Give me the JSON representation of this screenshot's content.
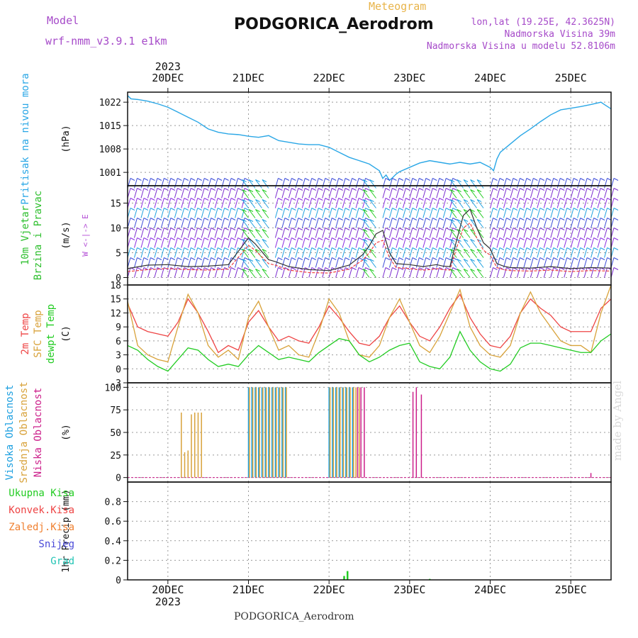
{
  "header": {
    "model_label": "Model",
    "model_name": "wrf-nmm_v3.9.1 e1km",
    "product": "Meteogram",
    "station": "PODGORICA_Aerodrom",
    "lonlat": "lon,lat (19.25E, 42.3625N)",
    "elevation": "Nadmorska Visina 39m",
    "model_elevation": "Nadmorska Visina u modelu 52.8106m"
  },
  "footer": {
    "station": "PODGORICA_Aerodrom",
    "credit": "made by Angel"
  },
  "colors": {
    "pressure": "#2aa7e6",
    "wind_axis": "#2dbf2d",
    "wind_dir": "#b44fd6",
    "temp2m": "#ee4444",
    "sfc": "#d8a23a",
    "dewpt": "#22cc22",
    "high_cloud": "#1ea0e0",
    "mid_cloud": "#d8a23a",
    "low_cloud": "#cc1f8a",
    "precip_total": "#22cc22",
    "precip_conv": "#ee4444",
    "precip_frz": "#f08030",
    "snow": "#4a4ad8",
    "hail": "#22c4b4"
  },
  "time_axis": {
    "year": "2023",
    "days": [
      "20DEC",
      "21DEC",
      "22DEC",
      "23DEC",
      "24DEC",
      "25DEC"
    ]
  },
  "chart_data": [
    {
      "type": "line",
      "title": "Pritisak na nivou mora",
      "ylabel": "(hPa)",
      "x_unit": "hours from 19DEC 12UTC",
      "ylim": [
        997,
        1025
      ],
      "yticks": [
        1001,
        1008,
        1015,
        1022
      ],
      "series": [
        {
          "x": [
            0,
            1,
            3,
            6,
            9,
            12,
            15,
            18,
            21,
            24,
            27,
            30,
            33,
            36,
            39,
            42,
            45,
            48,
            51,
            54,
            57,
            60,
            63,
            66,
            69,
            72,
            75,
            76,
            77,
            78,
            79,
            80,
            81,
            84,
            87,
            90,
            93,
            96,
            99,
            102,
            105,
            108,
            109,
            110,
            111,
            114,
            117,
            120,
            123,
            126,
            129,
            132,
            135,
            138,
            141,
            142,
            144
          ],
          "values": [
            1024,
            1023,
            1022.8,
            1022.3,
            1021.5,
            1020.5,
            1019,
            1017.5,
            1016,
            1014,
            1013,
            1012.5,
            1012.3,
            1011.8,
            1011.5,
            1012,
            1010.5,
            1010,
            1009.5,
            1009.3,
            1009.3,
            1008.5,
            1007,
            1005.5,
            1004.5,
            1003.5,
            1001.5,
            999.2,
            1000.2,
            998.6,
            999.5,
            1000.5,
            1001.2,
            1002.5,
            1003.8,
            1004.5,
            1004,
            1003.5,
            1004,
            1003.5,
            1004,
            1002.5,
            1001.5,
            1005,
            1007,
            1009.5,
            1012,
            1014,
            1016.2,
            1018.2,
            1019.7,
            1020.2,
            1020.7,
            1021.3,
            1022,
            1021.3,
            1020
          ]
        }
      ]
    },
    {
      "type": "line",
      "title": "10m Vjetar Brzina i Pravac",
      "ylabel": "(m/s)",
      "direction_key": "W <-|-> E",
      "ylim": [
        -1.5,
        18.5
      ],
      "yticks": [
        0,
        5,
        10,
        15
      ],
      "series": [
        {
          "x": [
            0,
            6,
            12,
            18,
            24,
            30,
            36,
            38,
            42,
            44,
            48,
            54,
            60,
            66,
            70,
            72,
            74,
            76,
            78,
            80,
            84,
            88,
            90,
            92,
            94,
            96,
            98,
            100,
            102,
            104,
            106,
            108,
            110,
            112,
            114,
            120,
            126,
            132,
            138,
            144
          ],
          "values": [
            1.2,
            1.6,
            1.8,
            1.6,
            1.5,
            1.7,
            6.5,
            5.5,
            2.8,
            2.5,
            1.5,
            1.0,
            0.9,
            1.7,
            3.5,
            5.0,
            7.0,
            7.5,
            4.0,
            2.0,
            1.8,
            1.5,
            1.6,
            1.8,
            1.6,
            1.5,
            6.0,
            10.0,
            11.0,
            8.0,
            5.5,
            4.5,
            2.0,
            1.6,
            1.4,
            1.3,
            1.5,
            1.2,
            1.4,
            1.3
          ]
        },
        {
          "x": [
            0,
            6,
            12,
            18,
            24,
            30,
            36,
            38,
            42,
            44,
            48,
            54,
            60,
            66,
            70,
            72,
            74,
            76,
            78,
            80,
            84,
            88,
            90,
            92,
            94,
            96,
            98,
            100,
            102,
            104,
            106,
            108,
            110,
            112,
            114,
            120,
            126,
            132,
            138,
            144
          ],
          "values": [
            1.8,
            2.5,
            2.6,
            2.2,
            2.3,
            2.6,
            8.0,
            6.8,
            3.6,
            3.2,
            2.2,
            1.6,
            1.4,
            2.5,
            4.6,
            6.4,
            8.8,
            9.5,
            5.0,
            2.8,
            2.6,
            2.2,
            2.4,
            2.6,
            2.3,
            2.2,
            7.5,
            12.5,
            13.8,
            10.0,
            7.0,
            5.8,
            2.8,
            2.3,
            2.0,
            1.9,
            2.2,
            1.8,
            2.0,
            1.9
          ]
        }
      ]
    },
    {
      "type": "line",
      "ylabel": "(C)",
      "ylim": [
        -3,
        18
      ],
      "yticks": [
        -3,
        0,
        3,
        6,
        9,
        12,
        15,
        18
      ],
      "series": [
        {
          "name": "2m Temp",
          "x": [
            0,
            3,
            6,
            9,
            12,
            15,
            18,
            21,
            24,
            27,
            30,
            33,
            36,
            39,
            42,
            45,
            48,
            51,
            54,
            57,
            60,
            63,
            66,
            69,
            72,
            75,
            78,
            81,
            84,
            87,
            90,
            93,
            96,
            99,
            102,
            105,
            108,
            111,
            114,
            117,
            120,
            123,
            126,
            129,
            132,
            135,
            138,
            141,
            144
          ],
          "values": [
            14,
            9,
            8,
            7.5,
            7,
            10,
            15,
            12,
            8,
            3.5,
            5,
            4,
            10,
            12.5,
            9,
            6,
            7,
            6,
            5.5,
            9,
            13.5,
            11,
            8,
            5.5,
            5,
            7,
            11,
            13.5,
            10,
            7,
            6,
            9,
            13,
            16,
            11,
            7.5,
            5,
            4.5,
            7,
            12,
            15,
            13,
            11.5,
            9,
            8,
            8,
            8,
            13,
            15
          ]
        },
        {
          "name": "SFC Temp",
          "x": [
            0,
            3,
            6,
            9,
            12,
            15,
            18,
            21,
            24,
            27,
            30,
            33,
            36,
            39,
            42,
            45,
            48,
            51,
            54,
            57,
            60,
            63,
            66,
            69,
            72,
            75,
            78,
            81,
            84,
            87,
            90,
            93,
            96,
            99,
            102,
            105,
            108,
            111,
            114,
            117,
            120,
            123,
            126,
            129,
            132,
            135,
            138,
            141,
            144
          ],
          "values": [
            14.5,
            5,
            3,
            2,
            1.5,
            9,
            16,
            12,
            5,
            2.5,
            4,
            2,
            11,
            14.5,
            9,
            4,
            5,
            3,
            2.5,
            8,
            15,
            12,
            6,
            3,
            2.5,
            5,
            11,
            15,
            10,
            5,
            3.5,
            7,
            12,
            17,
            9,
            5,
            3,
            2.5,
            5,
            12,
            16.5,
            12,
            9,
            6,
            5,
            5,
            3.5,
            12,
            18
          ]
        },
        {
          "name": "dewpt Temp",
          "x": [
            0,
            3,
            6,
            9,
            12,
            15,
            18,
            21,
            24,
            27,
            30,
            33,
            36,
            39,
            42,
            45,
            48,
            51,
            54,
            57,
            60,
            63,
            66,
            69,
            72,
            75,
            78,
            81,
            84,
            87,
            90,
            93,
            96,
            99,
            102,
            105,
            108,
            111,
            114,
            117,
            120,
            123,
            126,
            129,
            132,
            135,
            138,
            141,
            144
          ],
          "values": [
            5,
            4,
            2,
            0.5,
            -0.5,
            2,
            4.5,
            4,
            2,
            0.5,
            1,
            0.5,
            3,
            5,
            3.5,
            2,
            2.5,
            2,
            1.5,
            3.5,
            5,
            6.5,
            6,
            3,
            1.5,
            2.5,
            4,
            5,
            5.5,
            1.5,
            0.5,
            0,
            2.5,
            8,
            4,
            1.5,
            0,
            -0.5,
            1,
            4.5,
            5.5,
            5.5,
            5,
            4.5,
            4,
            3.5,
            3.5,
            6,
            7.5
          ]
        }
      ]
    },
    {
      "type": "bar",
      "ylabel": "(%)",
      "ylim": [
        -5,
        105
      ],
      "yticks": [
        0,
        25,
        50,
        75,
        100
      ],
      "series": [
        {
          "name": "Visoka Oblacnost",
          "x": [
            36,
            37,
            38,
            39,
            40,
            41,
            42,
            43,
            44,
            45,
            46,
            47,
            60,
            61,
            62,
            63,
            64,
            65,
            66,
            67
          ],
          "values": [
            100,
            100,
            100,
            100,
            100,
            100,
            100,
            100,
            100,
            100,
            100,
            100,
            100,
            100,
            100,
            100,
            100,
            100,
            100,
            100
          ]
        },
        {
          "name": "Srednja Oblacnost",
          "x": [
            16,
            17,
            18,
            19,
            20,
            21,
            22,
            36.3,
            37.3,
            38.3,
            39.3,
            40.3,
            41.3,
            42.3,
            43.3,
            44.3,
            45.3,
            46.3,
            47.3,
            60.3,
            61.3,
            62.3,
            63.3,
            64.3,
            65.3,
            66.3,
            67.3,
            68,
            69
          ],
          "values": [
            72,
            28,
            30,
            70,
            72,
            72,
            72,
            100,
            100,
            100,
            100,
            100,
            100,
            100,
            100,
            100,
            100,
            100,
            100,
            100,
            100,
            100,
            100,
            100,
            100,
            100,
            100,
            100,
            100
          ]
        },
        {
          "name": "Niska Oblacnost",
          "x": [
            68.5,
            69.5,
            70.5,
            85,
            86,
            87.5,
            138
          ],
          "values": [
            100,
            100,
            100,
            95,
            100,
            92,
            5
          ]
        }
      ]
    },
    {
      "type": "bar",
      "ylabel": "1hr Precip (mm)",
      "ylim": [
        0,
        1.0
      ],
      "yticks": [
        0,
        0.2,
        0.4,
        0.6,
        0.8
      ],
      "series": [
        {
          "name": "Ukupna Kisa",
          "x": [
            64.5,
            65.5,
            90
          ],
          "values": [
            0.04,
            0.09,
            0.01
          ]
        },
        {
          "name": "Konvek.Kisa",
          "x": [],
          "values": []
        },
        {
          "name": "Zaledj.Kisa",
          "x": [],
          "values": []
        },
        {
          "name": "Snijeg",
          "x": [],
          "values": []
        },
        {
          "name": "Grad",
          "x": [],
          "values": []
        }
      ]
    }
  ]
}
